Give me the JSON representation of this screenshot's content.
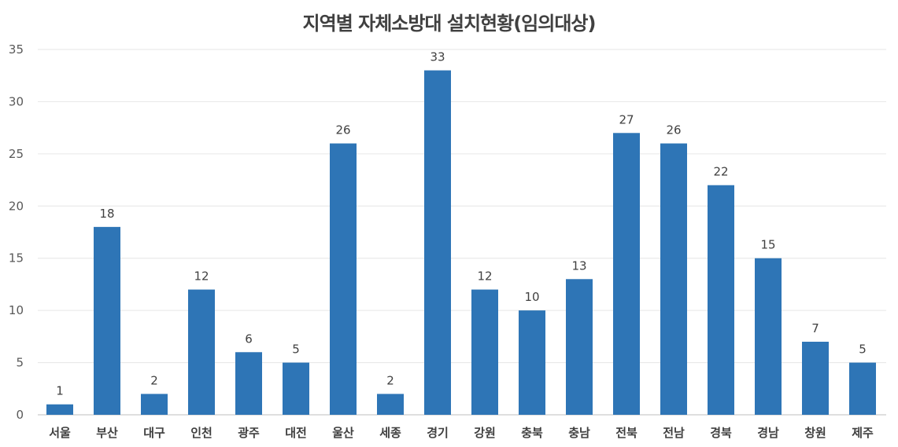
{
  "chart_data": {
    "type": "bar",
    "title": "지역별 자체소방대 설치현황(임의대상)",
    "xlabel": "",
    "ylabel": "",
    "ylim": [
      0,
      35
    ],
    "yticks": [
      0,
      5,
      10,
      15,
      20,
      25,
      30,
      35
    ],
    "grid": true,
    "legend": "none",
    "bar_color": "#2e75b6",
    "categories": [
      "서울",
      "부산",
      "대구",
      "인천",
      "광주",
      "대전",
      "울산",
      "세종",
      "경기",
      "강원",
      "충북",
      "충남",
      "전북",
      "전남",
      "경북",
      "경남",
      "창원",
      "제주"
    ],
    "values": [
      1,
      18,
      2,
      12,
      6,
      5,
      26,
      2,
      33,
      12,
      10,
      13,
      27,
      26,
      22,
      15,
      7,
      5
    ]
  }
}
